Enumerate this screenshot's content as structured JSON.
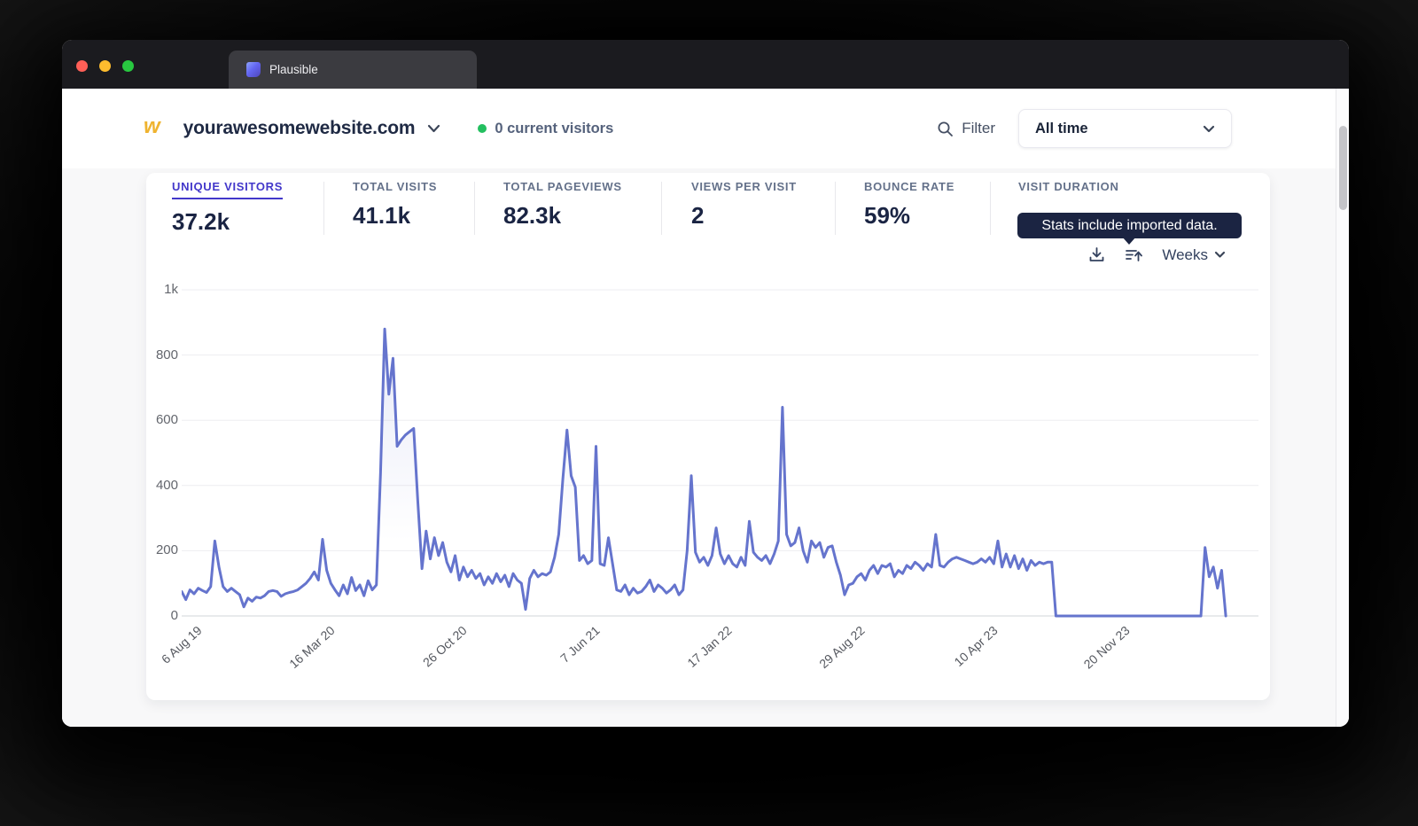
{
  "window": {
    "tab_title": "Plausible"
  },
  "header": {
    "favicon_glyph": "w",
    "site_domain": "yourawesomewebsite.com",
    "current_visitors": "0 current visitors",
    "filter_label": "Filter",
    "date_range_label": "All time"
  },
  "stats": [
    {
      "label": "UNIQUE VISITORS",
      "value": "37.2k",
      "active": true
    },
    {
      "label": "TOTAL VISITS",
      "value": "41.1k",
      "active": false
    },
    {
      "label": "TOTAL PAGEVIEWS",
      "value": "82.3k",
      "active": false
    },
    {
      "label": "VIEWS PER VISIT",
      "value": "2",
      "active": false
    },
    {
      "label": "BOUNCE RATE",
      "value": "59%",
      "active": false
    },
    {
      "label": "VISIT DURATION",
      "value": "",
      "active": false
    }
  ],
  "tooltip": {
    "text": "Stats include imported data."
  },
  "chart_controls": {
    "interval_label": "Weeks",
    "icons": [
      "download-icon",
      "import-icon"
    ]
  },
  "colors": {
    "accent_indigo": "#4338ca",
    "line": "#6574cd",
    "tooltip_bg": "#1b2442",
    "live_dot_green": "#23bf5f"
  },
  "chart_data": {
    "type": "line",
    "title": "Unique visitors over time (weekly)",
    "x_tick_labels": [
      "6 Aug 19",
      "16 Mar 20",
      "26 Oct 20",
      "7 Jun 21",
      "17 Jan 22",
      "29 Aug 22",
      "10 Apr 23",
      "20 Nov 23"
    ],
    "x_tick_indices": [
      0,
      32,
      64,
      96,
      128,
      160,
      192,
      224
    ],
    "y_tick_labels": [
      "1k",
      "800",
      "600",
      "400",
      "200",
      "0"
    ],
    "ylim": [
      0,
      1000
    ],
    "grid": true,
    "legend": false,
    "line_color": "#6574cd",
    "values": [
      75,
      50,
      80,
      68,
      85,
      78,
      72,
      90,
      230,
      150,
      90,
      75,
      85,
      75,
      65,
      28,
      55,
      45,
      58,
      55,
      62,
      75,
      78,
      75,
      60,
      68,
      72,
      75,
      80,
      90,
      100,
      115,
      135,
      110,
      235,
      140,
      100,
      80,
      62,
      95,
      68,
      118,
      78,
      95,
      62,
      108,
      80,
      95,
      440,
      880,
      680,
      790,
      520,
      540,
      555,
      565,
      575,
      350,
      145,
      260,
      175,
      240,
      185,
      225,
      165,
      135,
      185,
      110,
      150,
      120,
      140,
      115,
      130,
      95,
      120,
      100,
      130,
      105,
      125,
      90,
      130,
      110,
      100,
      20,
      115,
      140,
      120,
      130,
      125,
      135,
      180,
      250,
      420,
      570,
      430,
      395,
      170,
      185,
      160,
      170,
      520,
      160,
      155,
      240,
      160,
      80,
      75,
      95,
      65,
      85,
      70,
      75,
      90,
      110,
      75,
      95,
      85,
      70,
      80,
      95,
      65,
      80,
      200,
      430,
      195,
      165,
      180,
      155,
      185,
      270,
      190,
      160,
      185,
      160,
      150,
      180,
      155,
      290,
      195,
      180,
      170,
      185,
      160,
      190,
      230,
      640,
      250,
      215,
      225,
      270,
      200,
      165,
      230,
      210,
      225,
      180,
      210,
      215,
      165,
      125,
      65,
      95,
      100,
      120,
      130,
      110,
      140,
      155,
      130,
      155,
      150,
      160,
      120,
      140,
      130,
      155,
      145,
      165,
      155,
      140,
      160,
      150,
      250,
      155,
      150,
      165,
      175,
      180,
      175,
      170,
      165,
      160,
      165,
      175,
      165,
      180,
      160,
      230,
      150,
      190,
      150,
      185,
      145,
      175,
      140,
      170,
      155,
      165,
      160,
      165,
      165,
      0,
      0,
      0,
      0,
      0,
      0,
      0,
      0,
      0,
      0,
      0,
      0,
      0,
      0,
      0,
      0,
      0,
      0,
      0,
      0,
      0,
      0,
      0,
      0,
      0,
      0,
      0,
      0,
      0,
      0,
      0,
      0,
      0,
      0,
      0,
      0,
      210,
      120,
      150,
      85,
      140,
      0
    ]
  }
}
